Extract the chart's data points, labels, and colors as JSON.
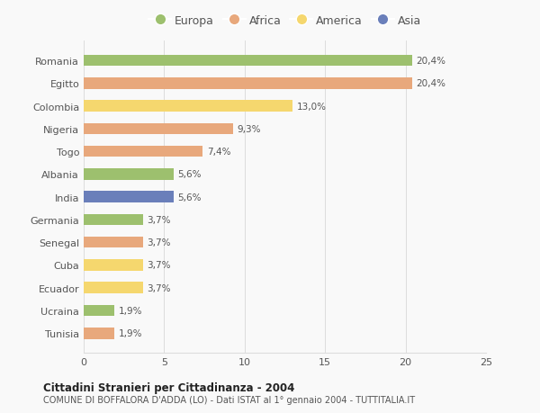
{
  "categories": [
    "Tunisia",
    "Ucraina",
    "Ecuador",
    "Cuba",
    "Senegal",
    "Germania",
    "India",
    "Albania",
    "Togo",
    "Nigeria",
    "Colombia",
    "Egitto",
    "Romania"
  ],
  "values": [
    1.9,
    1.9,
    3.7,
    3.7,
    3.7,
    3.7,
    5.6,
    5.6,
    7.4,
    9.3,
    13.0,
    20.4,
    20.4
  ],
  "colors": [
    "#e8a87c",
    "#9dc06e",
    "#f5d76e",
    "#f5d76e",
    "#e8a87c",
    "#9dc06e",
    "#6a7fba",
    "#9dc06e",
    "#e8a87c",
    "#e8a87c",
    "#f5d76e",
    "#e8a87c",
    "#9dc06e"
  ],
  "labels": [
    "1,9%",
    "1,9%",
    "3,7%",
    "3,7%",
    "3,7%",
    "3,7%",
    "5,6%",
    "5,6%",
    "7,4%",
    "9,3%",
    "13,0%",
    "20,4%",
    "20,4%"
  ],
  "legend_labels": [
    "Europa",
    "Africa",
    "America",
    "Asia"
  ],
  "legend_colors": [
    "#9dc06e",
    "#e8a87c",
    "#f5d76e",
    "#6a7fba"
  ],
  "title1": "Cittadini Stranieri per Cittadinanza - 2004",
  "title2": "COMUNE DI BOFFALORA D'ADDA (LO) - Dati ISTAT al 1° gennaio 2004 - TUTTITALIA.IT",
  "xlim": [
    0,
    25
  ],
  "xticks": [
    0,
    5,
    10,
    15,
    20,
    25
  ],
  "background_color": "#f9f9f9",
  "bar_height": 0.5
}
